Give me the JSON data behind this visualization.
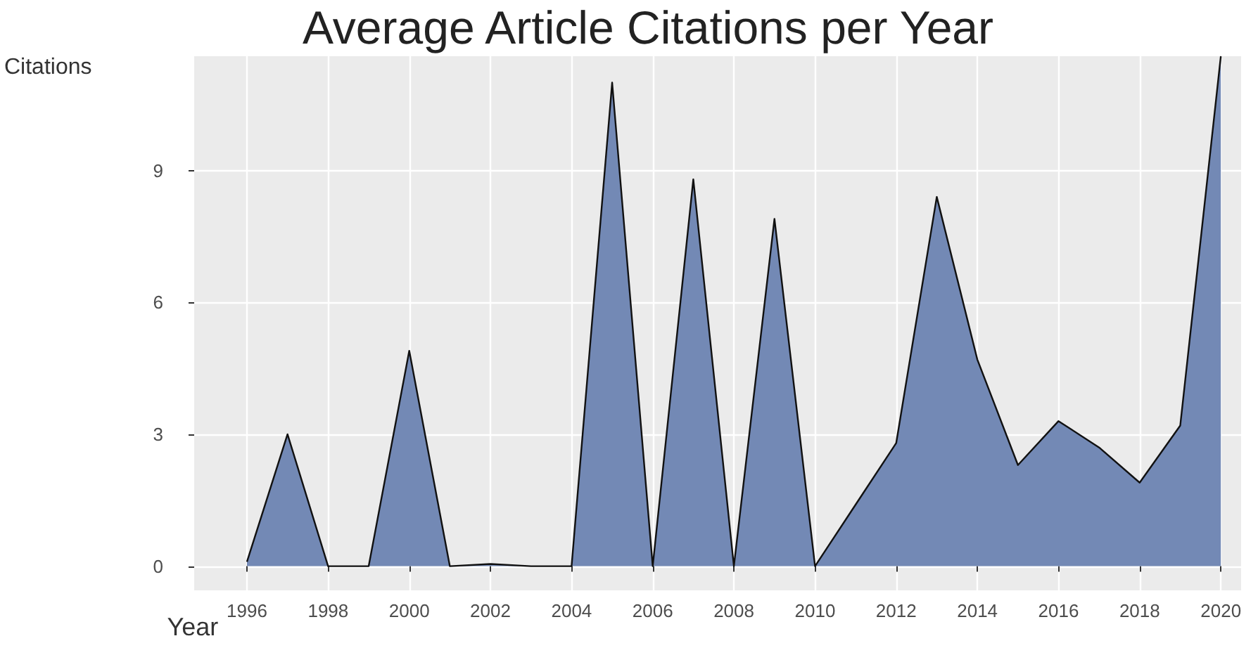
{
  "chart_data": {
    "type": "area",
    "title": "Average Article Citations per Year",
    "xlabel": "Year",
    "ylabel": "Citations",
    "x": [
      1996,
      1997,
      1998,
      1999,
      2000,
      2001,
      2002,
      2003,
      2004,
      2005,
      2006,
      2007,
      2008,
      2009,
      2010,
      2011,
      2012,
      2013,
      2014,
      2015,
      2016,
      2017,
      2018,
      2019,
      2020
    ],
    "series": [
      {
        "color": "#7389b5",
        "values": [
          0.1,
          3.0,
          0,
          0,
          4.9,
          0,
          0.05,
          0,
          0,
          11.0,
          0,
          8.8,
          0,
          7.9,
          0,
          1.4,
          2.8,
          8.4,
          4.7,
          2.3,
          3.3,
          2.7,
          1.9,
          3.2,
          11.6
        ]
      }
    ],
    "xlim": [
      1994.7,
      2020.5
    ],
    "xticks": [
      1996,
      1998,
      2000,
      2002,
      2004,
      2006,
      2008,
      2010,
      2012,
      2014,
      2016,
      2018,
      2020
    ],
    "ylim": [
      -0.55,
      11.6
    ],
    "yticks": [
      0,
      3,
      6,
      9
    ],
    "grid": true
  }
}
